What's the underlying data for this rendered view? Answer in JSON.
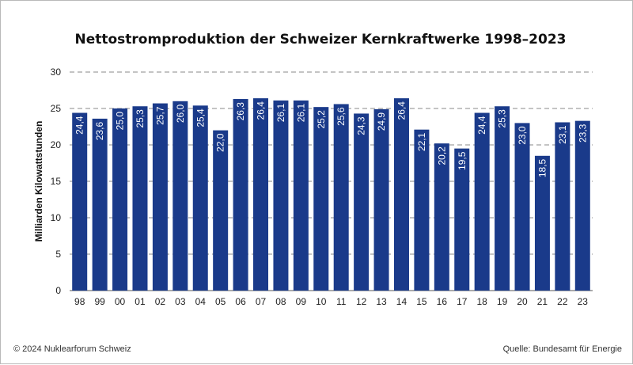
{
  "chart_data": {
    "type": "bar",
    "title": "Nettostromproduktion der Schweizer Kernkraftwerke 1998–2023",
    "ylabel": "Milliarden Kilowattstunden",
    "xlabel": "",
    "ylim": [
      0,
      30
    ],
    "yticks": [
      0,
      5,
      10,
      15,
      20,
      25,
      30
    ],
    "grid": "dashed-horizontal",
    "categories": [
      "98",
      "99",
      "00",
      "01",
      "02",
      "03",
      "04",
      "05",
      "06",
      "07",
      "08",
      "09",
      "10",
      "11",
      "12",
      "13",
      "14",
      "15",
      "16",
      "17",
      "18",
      "19",
      "20",
      "21",
      "22",
      "23"
    ],
    "values": [
      24.4,
      23.6,
      25.0,
      25.3,
      25.7,
      26.0,
      25.4,
      22.0,
      26.3,
      26.4,
      26.1,
      26.1,
      25.2,
      25.6,
      24.3,
      24.9,
      26.4,
      22.1,
      20.2,
      19.5,
      24.4,
      25.3,
      23.0,
      18.5,
      23.1,
      23.3
    ],
    "value_labels": [
      "24,4",
      "23,6",
      "25,0",
      "25,3",
      "25,7",
      "26,0",
      "25,4",
      "22,0",
      "26,3",
      "26,4",
      "26,1",
      "26,1",
      "25,2",
      "25,6",
      "24,3",
      "24,9",
      "26,4",
      "22,1",
      "20,2",
      "19,5",
      "24,4",
      "25,3",
      "23,0",
      "18,5",
      "23,1",
      "23,3"
    ],
    "bar_color": "#1a3a8a"
  },
  "footer": {
    "copyright": "© 2024 Nuklearforum Schweiz",
    "source": "Quelle: Bundesamt für Energie"
  }
}
